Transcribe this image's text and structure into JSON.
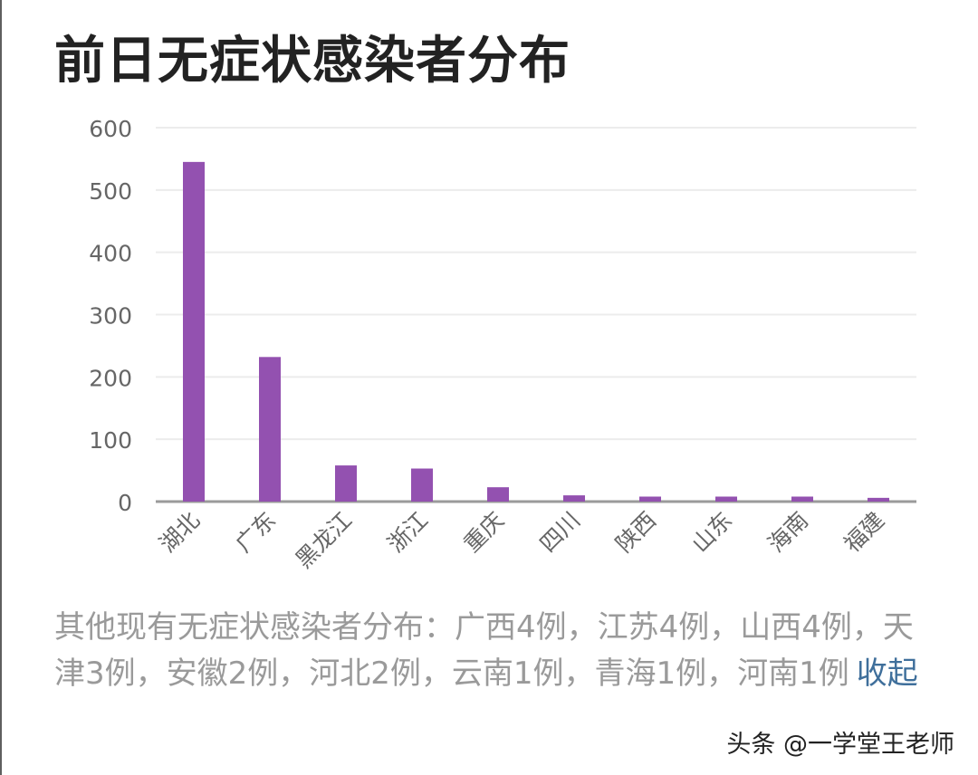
{
  "title": "前日无症状感染者分布",
  "chart_data": {
    "type": "bar",
    "categories": [
      "湖北",
      "广东",
      "黑龙江",
      "浙江",
      "重庆",
      "四川",
      "陕西",
      "山东",
      "海南",
      "福建"
    ],
    "values": [
      545,
      232,
      58,
      53,
      23,
      10,
      8,
      8,
      8,
      6
    ],
    "yticks": [
      "0",
      "100",
      "200",
      "300",
      "400",
      "500",
      "600"
    ],
    "ylim": [
      0,
      600
    ],
    "grid": true,
    "bar_color": "#9351b0",
    "title": "",
    "xlabel": "",
    "ylabel": ""
  },
  "summary": {
    "text": "其他现有无症状感染者分布：广西4例，江苏4例，山西4例，天津3例，安徽2例，河北2例，云南1例，青海1例，河南1例",
    "collapse_label": "收起"
  },
  "watermark": "头条 @一学堂王老师",
  "colors": {
    "bar": "#9351b0",
    "grid": "#ececec",
    "axis": "#9a9a9a",
    "tick_text": "#666666",
    "link": "#3f6f9b"
  }
}
